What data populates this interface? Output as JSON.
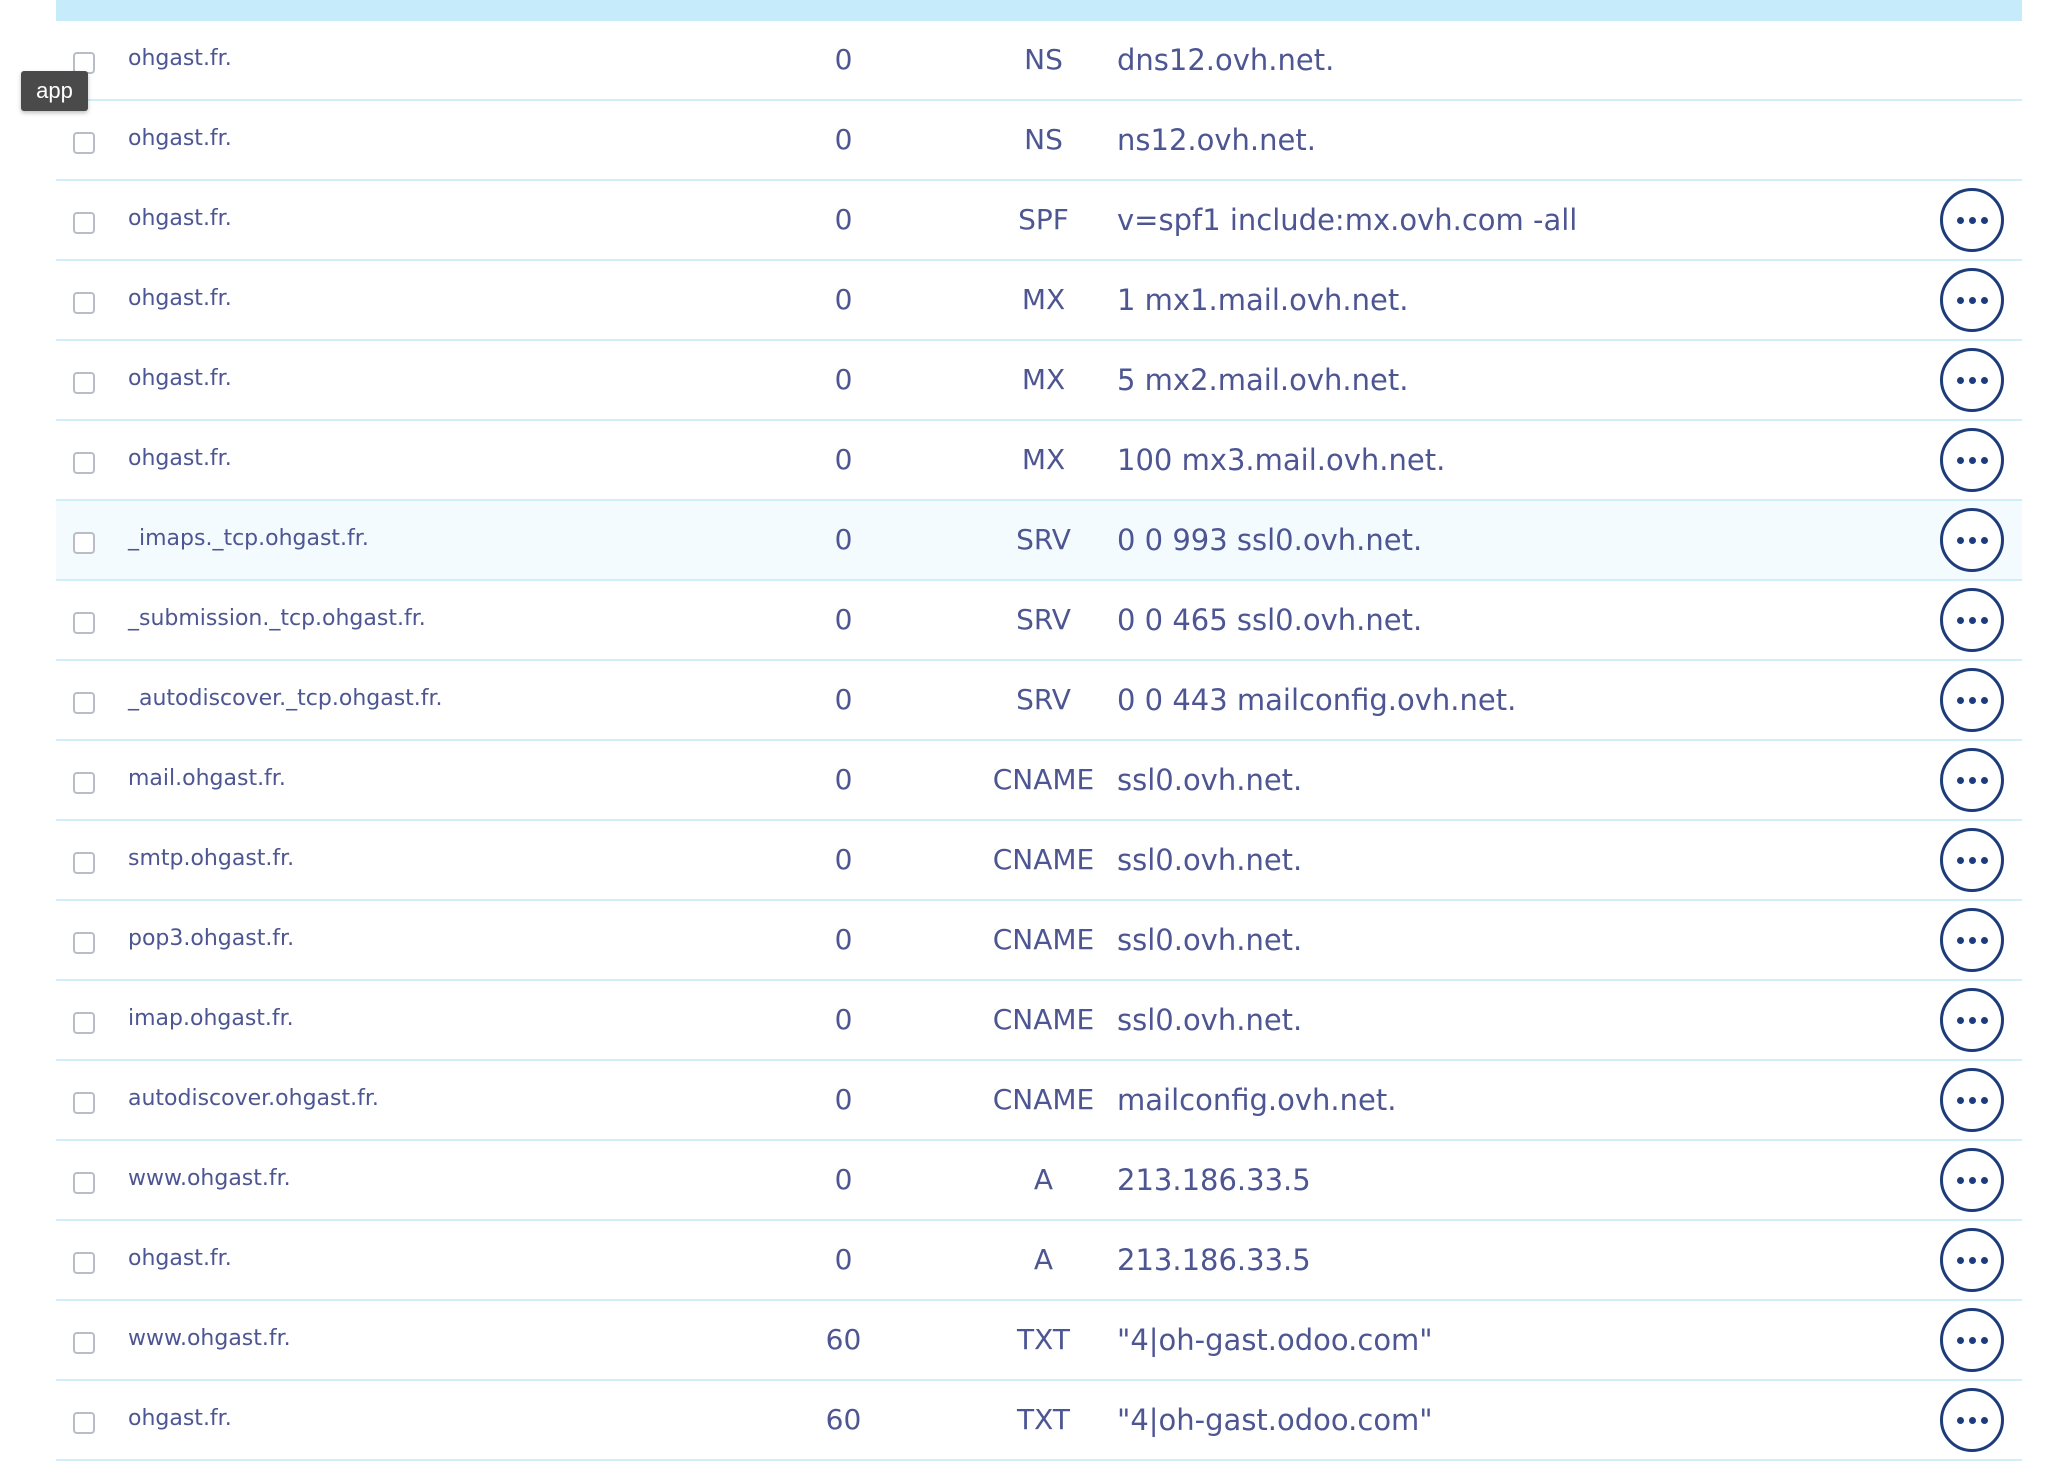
{
  "tooltip": "app",
  "records": [
    {
      "domain": "ohgast.fr.",
      "ttl": "0",
      "type": "NS",
      "target": "dns12.ovh.net.",
      "actions": false
    },
    {
      "domain": "ohgast.fr.",
      "ttl": "0",
      "type": "NS",
      "target": "ns12.ovh.net.",
      "actions": false
    },
    {
      "domain": "ohgast.fr.",
      "ttl": "0",
      "type": "SPF",
      "target": "v=spf1 include:mx.ovh.com -all",
      "actions": true
    },
    {
      "domain": "ohgast.fr.",
      "ttl": "0",
      "type": "MX",
      "target": "1 mx1.mail.ovh.net.",
      "actions": true
    },
    {
      "domain": "ohgast.fr.",
      "ttl": "0",
      "type": "MX",
      "target": "5 mx2.mail.ovh.net.",
      "actions": true
    },
    {
      "domain": "ohgast.fr.",
      "ttl": "0",
      "type": "MX",
      "target": "100 mx3.mail.ovh.net.",
      "actions": true
    },
    {
      "domain": "_imaps._tcp.ohgast.fr.",
      "ttl": "0",
      "type": "SRV",
      "target": "0 0 993 ssl0.ovh.net.",
      "actions": true
    },
    {
      "domain": "_submission._tcp.ohgast.fr.",
      "ttl": "0",
      "type": "SRV",
      "target": "0 0 465 ssl0.ovh.net.",
      "actions": true
    },
    {
      "domain": "_autodiscover._tcp.ohgast.fr.",
      "ttl": "0",
      "type": "SRV",
      "target": "0 0 443 mailconfig.ovh.net.",
      "actions": true
    },
    {
      "domain": "mail.ohgast.fr.",
      "ttl": "0",
      "type": "CNAME",
      "target": "ssl0.ovh.net.",
      "actions": true
    },
    {
      "domain": "smtp.ohgast.fr.",
      "ttl": "0",
      "type": "CNAME",
      "target": "ssl0.ovh.net.",
      "actions": true
    },
    {
      "domain": "pop3.ohgast.fr.",
      "ttl": "0",
      "type": "CNAME",
      "target": "ssl0.ovh.net.",
      "actions": true
    },
    {
      "domain": "imap.ohgast.fr.",
      "ttl": "0",
      "type": "CNAME",
      "target": "ssl0.ovh.net.",
      "actions": true
    },
    {
      "domain": "autodiscover.ohgast.fr.",
      "ttl": "0",
      "type": "CNAME",
      "target": "mailconfig.ovh.net.",
      "actions": true
    },
    {
      "domain": "www.ohgast.fr.",
      "ttl": "0",
      "type": "A",
      "target": "213.186.33.5",
      "actions": true
    },
    {
      "domain": "ohgast.fr.",
      "ttl": "0",
      "type": "A",
      "target": "213.186.33.5",
      "actions": true
    },
    {
      "domain": "www.ohgast.fr.",
      "ttl": "60",
      "type": "TXT",
      "target": "\"4|oh-gast.odoo.com\"",
      "actions": true
    },
    {
      "domain": "ohgast.fr.",
      "ttl": "60",
      "type": "TXT",
      "target": "\"4|oh-gast.odoo.com\"",
      "actions": true
    }
  ],
  "highlighted_row": 6,
  "colors": {
    "header_bar": "#c6ecfb",
    "row_divider": "#cfeef9",
    "text": "#4d5693",
    "action_button": "#1e3b7a",
    "tooltip_bg": "#4a4a4a"
  },
  "icons": {
    "row_action": "more-options-icon",
    "row_select": "checkbox"
  }
}
